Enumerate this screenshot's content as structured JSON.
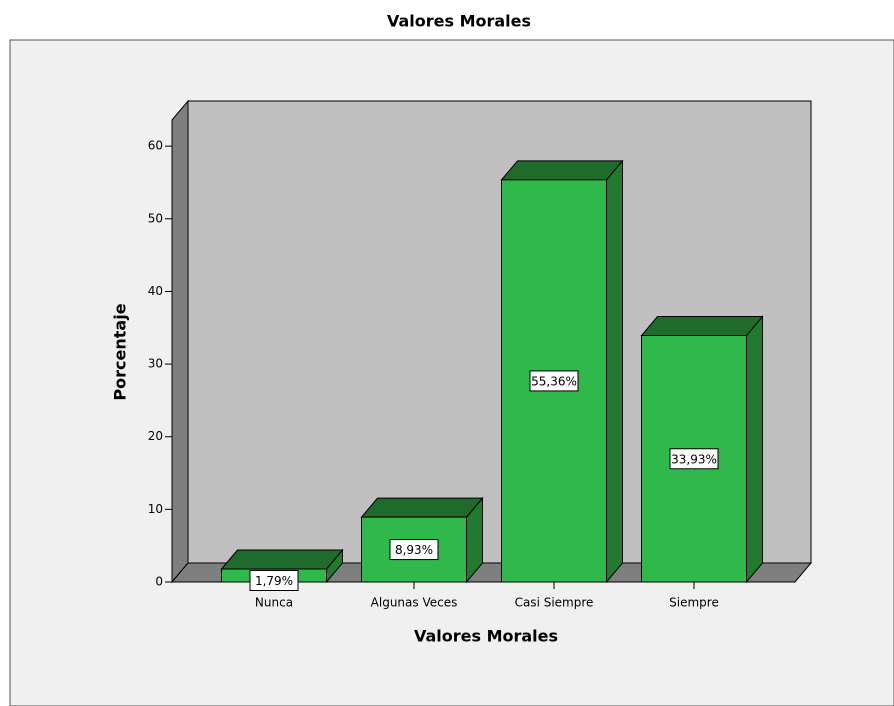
{
  "chart_data": {
    "type": "bar3d",
    "title": "Valores Morales",
    "x_label": "Valores Morales",
    "y_label": "Porcentaje",
    "categories": [
      "Nunca",
      "Algunas Veces",
      "Casi Siempre",
      "Siempre"
    ],
    "values": [
      1.79,
      8.93,
      55.36,
      33.93
    ],
    "value_labels": [
      "1,79%",
      "8,93%",
      "55,36%",
      "33,93%"
    ],
    "color": "#30b94b",
    "ylim": [
      0,
      63.6
    ],
    "yticks": [
      0,
      10,
      20,
      30,
      40,
      50,
      60
    ]
  }
}
